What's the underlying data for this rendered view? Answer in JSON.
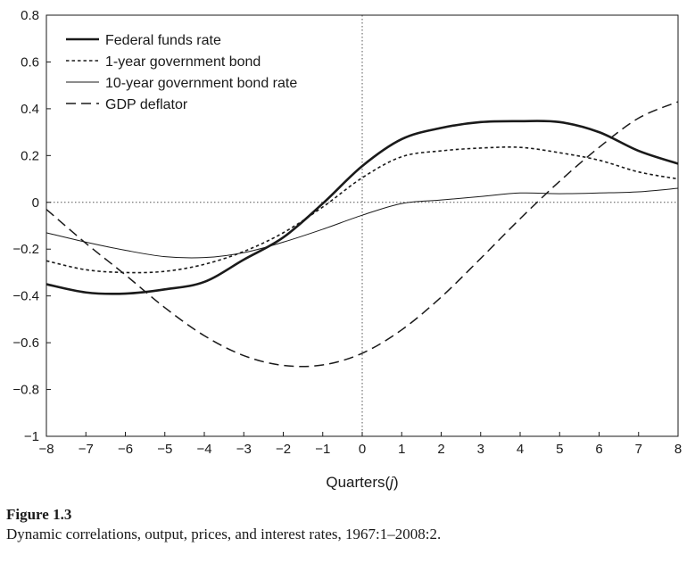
{
  "chart_data": {
    "type": "line",
    "xlabel_prefix": "Quarters(",
    "xlabel_var": "j",
    "xlabel_suffix": ")",
    "ylabel": "",
    "xlim": [
      -8,
      8
    ],
    "ylim": [
      -1,
      0.8
    ],
    "x_ticks": [
      -8,
      -7,
      -6,
      -5,
      -4,
      -3,
      -2,
      -1,
      0,
      1,
      2,
      3,
      4,
      5,
      6,
      7,
      8
    ],
    "x_tick_labels": [
      "−8",
      "−7",
      "−6",
      "−5",
      "−4",
      "−3",
      "−2",
      "−1",
      "0",
      "1",
      "2",
      "3",
      "4",
      "5",
      "6",
      "7",
      "8"
    ],
    "y_ticks": [
      -1,
      -0.8,
      -0.6,
      -0.4,
      -0.2,
      0,
      0.2,
      0.4,
      0.6,
      0.8
    ],
    "y_tick_labels": [
      "−1",
      "−0.8",
      "−0.6",
      "−0.4",
      "−0.2",
      "0",
      "0.2",
      "0.4",
      "0.6",
      "0.8"
    ],
    "reference_lines": {
      "horizontal_at": 0,
      "vertical_at": 0,
      "style": "dotted"
    },
    "legend_position": "top-left",
    "x": [
      -8,
      -7,
      -6,
      -5,
      -4,
      -3,
      -2,
      -1,
      0,
      1,
      2,
      3,
      4,
      5,
      6,
      7,
      8
    ],
    "series": [
      {
        "name": "Federal funds rate",
        "style": "solid-thick",
        "color": "#1a1a1a",
        "values": [
          -0.35,
          -0.385,
          -0.39,
          -0.372,
          -0.34,
          -0.245,
          -0.15,
          -0.005,
          0.155,
          0.27,
          0.318,
          0.343,
          0.347,
          0.343,
          0.3,
          0.22,
          0.165
        ]
      },
      {
        "name": "1-year government bond",
        "style": "dotted",
        "color": "#1a1a1a",
        "values": [
          -0.25,
          -0.288,
          -0.3,
          -0.295,
          -0.265,
          -0.21,
          -0.13,
          -0.02,
          0.105,
          0.195,
          0.22,
          0.232,
          0.235,
          0.212,
          0.18,
          0.13,
          0.1
        ]
      },
      {
        "name": "10-year government bond rate",
        "style": "solid-thin",
        "color": "#1a1a1a",
        "values": [
          -0.13,
          -0.17,
          -0.205,
          -0.232,
          -0.236,
          -0.215,
          -0.17,
          -0.115,
          -0.055,
          -0.005,
          0.01,
          0.025,
          0.04,
          0.037,
          0.04,
          0.045,
          0.06
        ]
      },
      {
        "name": "GDP deflator",
        "style": "dashed",
        "color": "#1a1a1a",
        "values": [
          -0.03,
          -0.175,
          -0.31,
          -0.45,
          -0.57,
          -0.655,
          -0.697,
          -0.695,
          -0.645,
          -0.545,
          -0.405,
          -0.24,
          -0.07,
          0.09,
          0.235,
          0.36,
          0.43
        ]
      }
    ]
  },
  "caption": {
    "label": "Figure 1.3",
    "text": "Dynamic correlations, output, prices, and interest rates, 1967:1–2008:2."
  }
}
